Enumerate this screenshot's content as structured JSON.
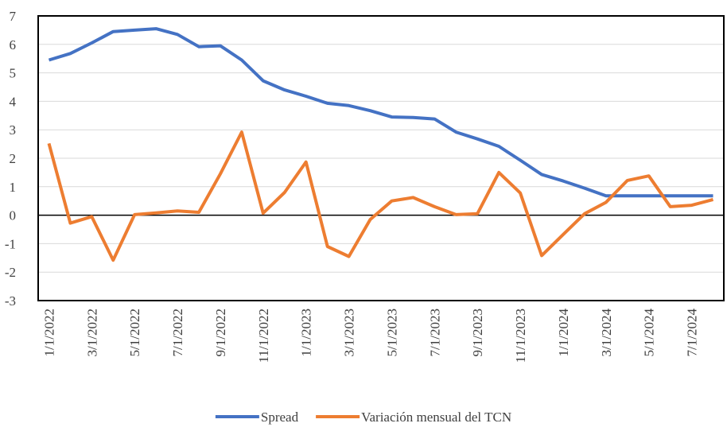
{
  "chart_data": {
    "type": "line",
    "categories": [
      "1/1/2022",
      null,
      "3/1/2022",
      null,
      "5/1/2022",
      null,
      "7/1/2022",
      null,
      "9/1/2022",
      null,
      "11/1/2022",
      null,
      "1/1/2023",
      null,
      "3/1/2023",
      null,
      "5/1/2023",
      null,
      "7/1/2023",
      null,
      "9/1/2023",
      null,
      "11/1/2023",
      null,
      "1/1/2024",
      null,
      "3/1/2024",
      null,
      "5/1/2024",
      null,
      "7/1/2024",
      null
    ],
    "series": [
      {
        "name": "Spread",
        "color": "#4472c4",
        "values": [
          5.45,
          5.68,
          6.05,
          6.45,
          6.5,
          6.55,
          6.35,
          5.92,
          5.95,
          5.45,
          4.72,
          4.4,
          4.18,
          3.93,
          3.85,
          3.67,
          3.45,
          3.43,
          3.38,
          2.92,
          2.68,
          2.42,
          1.93,
          1.43,
          1.2,
          0.95,
          0.68,
          0.68,
          0.68,
          0.68,
          0.68,
          0.68
        ]
      },
      {
        "name": "Variación mensual del TCN",
        "color": "#ed7d31",
        "values": [
          2.52,
          -0.28,
          -0.05,
          -1.58,
          0.02,
          0.08,
          0.15,
          0.1,
          1.45,
          2.92,
          0.07,
          0.8,
          1.87,
          -1.1,
          -1.45,
          -0.15,
          0.5,
          0.62,
          0.3,
          0.02,
          0.05,
          1.5,
          0.78,
          -1.42,
          -0.68,
          0.05,
          0.45,
          1.22,
          1.38,
          0.3,
          0.35,
          0.55
        ]
      }
    ],
    "ylim": [
      -3,
      7
    ],
    "yticks": [
      -3,
      -2,
      -1,
      0,
      1,
      2,
      3,
      4,
      5,
      6,
      7
    ],
    "grid": true,
    "legend": "bottom"
  }
}
